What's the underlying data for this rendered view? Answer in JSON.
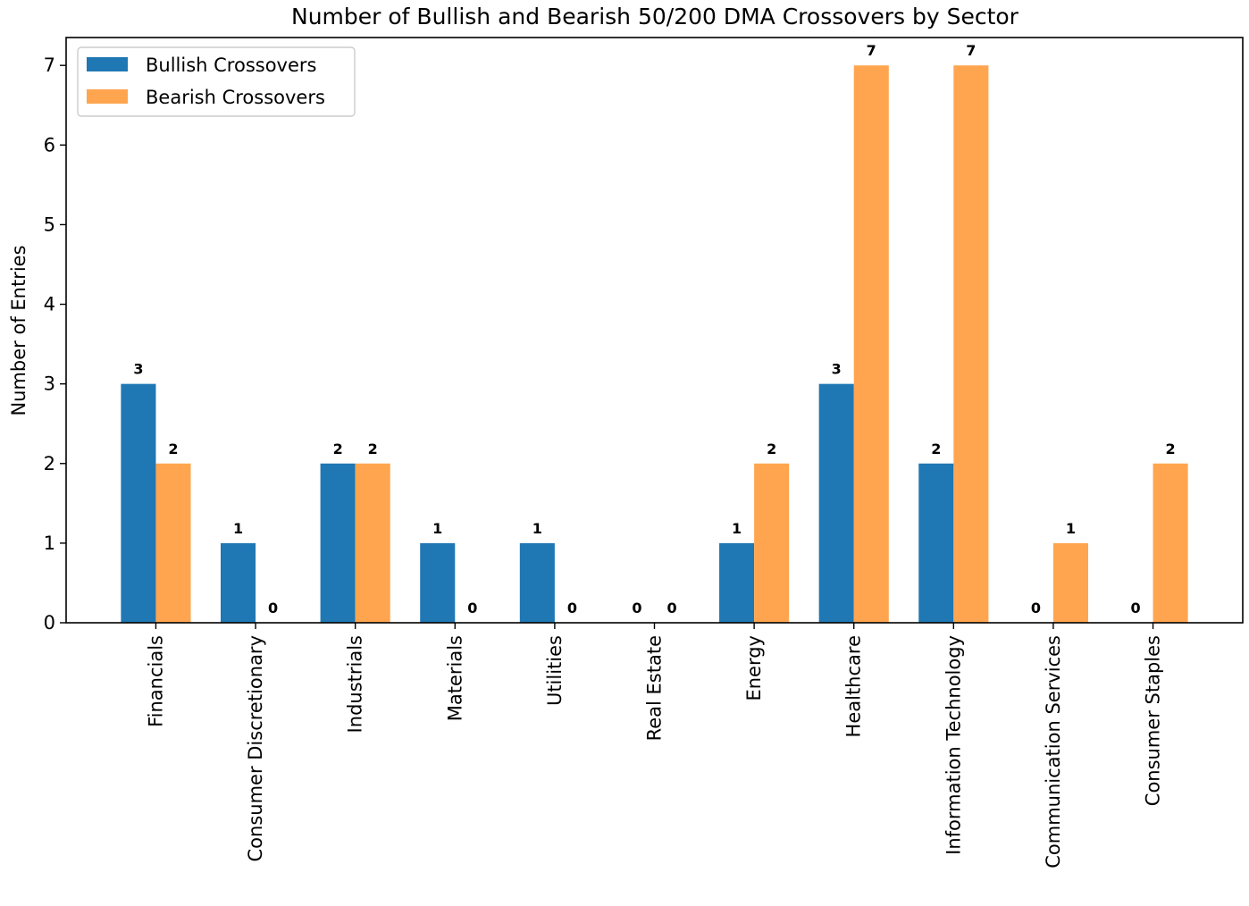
{
  "chart_data": {
    "type": "bar",
    "title": "Number of Bullish and Bearish 50/200 DMA Crossovers by Sector",
    "xlabel": "",
    "ylabel": "Number of Entries",
    "categories": [
      "Financials",
      "Consumer Discretionary",
      "Industrials",
      "Materials",
      "Utilities",
      "Real Estate",
      "Energy",
      "Healthcare",
      "Information Technology",
      "Communication Services",
      "Consumer Staples"
    ],
    "series": [
      {
        "name": "Bullish Crossovers",
        "color": "#1f77b4",
        "values": [
          3,
          1,
          2,
          1,
          1,
          0,
          1,
          3,
          2,
          0,
          0
        ]
      },
      {
        "name": "Bearish Crossovers",
        "color": "#ffa54f",
        "values": [
          2,
          0,
          2,
          0,
          0,
          0,
          2,
          7,
          7,
          1,
          2
        ]
      }
    ],
    "ylim": [
      0,
      7.35
    ],
    "yticks": [
      0,
      1,
      2,
      3,
      4,
      5,
      6,
      7
    ],
    "grid": false,
    "legend": "top-left",
    "data_labels": true
  }
}
